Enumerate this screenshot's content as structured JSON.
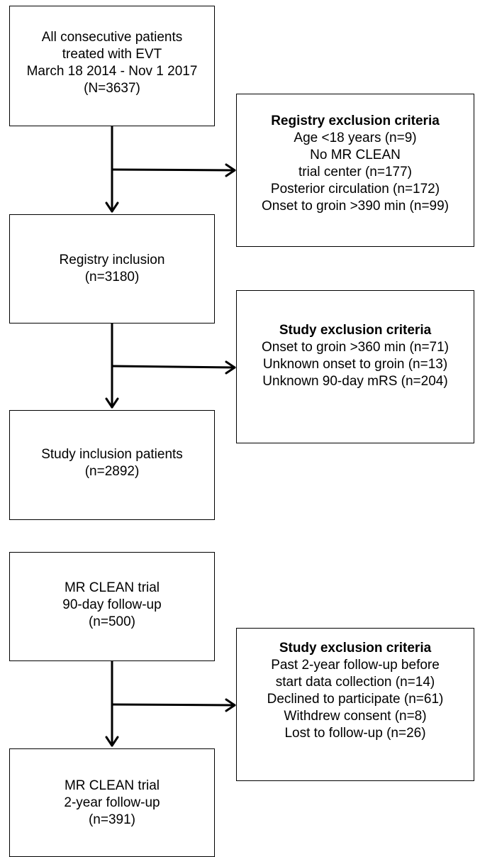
{
  "boxes": {
    "all_patients": {
      "lines": [
        "All consecutive patients",
        "treated with EVT",
        "March 18 2014 - Nov 1 2017",
        "(N=3637)"
      ]
    },
    "registry_exclusion": {
      "title": "Registry exclusion criteria",
      "lines": [
        "Age <18 years (n=9)",
        "No MR CLEAN",
        "trial center (n=177)",
        "Posterior circulation (n=172)",
        "Onset to groin >390 min (n=99)"
      ]
    },
    "registry_inclusion": {
      "lines": [
        "Registry inclusion",
        "(n=3180)"
      ]
    },
    "study_exclusion_1": {
      "title": "Study exclusion criteria",
      "lines": [
        "Onset to groin >360 min (n=71)",
        "Unknown onset to groin (n=13)",
        "Unknown 90-day mRS (n=204)"
      ]
    },
    "study_inclusion": {
      "lines": [
        "Study inclusion patients",
        "(n=2892)"
      ]
    },
    "trial_90day": {
      "lines": [
        "MR CLEAN trial",
        "90-day follow-up",
        "(n=500)"
      ]
    },
    "study_exclusion_2": {
      "title": "Study exclusion criteria",
      "lines": [
        "Past 2-year follow-up before",
        "start data collection (n=14)",
        "Declined to participate (n=61)",
        "Withdrew consent (n=8)",
        "Lost to follow-up (n=26)"
      ]
    },
    "trial_2year": {
      "lines": [
        "MR CLEAN trial",
        "2-year follow-up",
        "(n=391)"
      ]
    }
  }
}
